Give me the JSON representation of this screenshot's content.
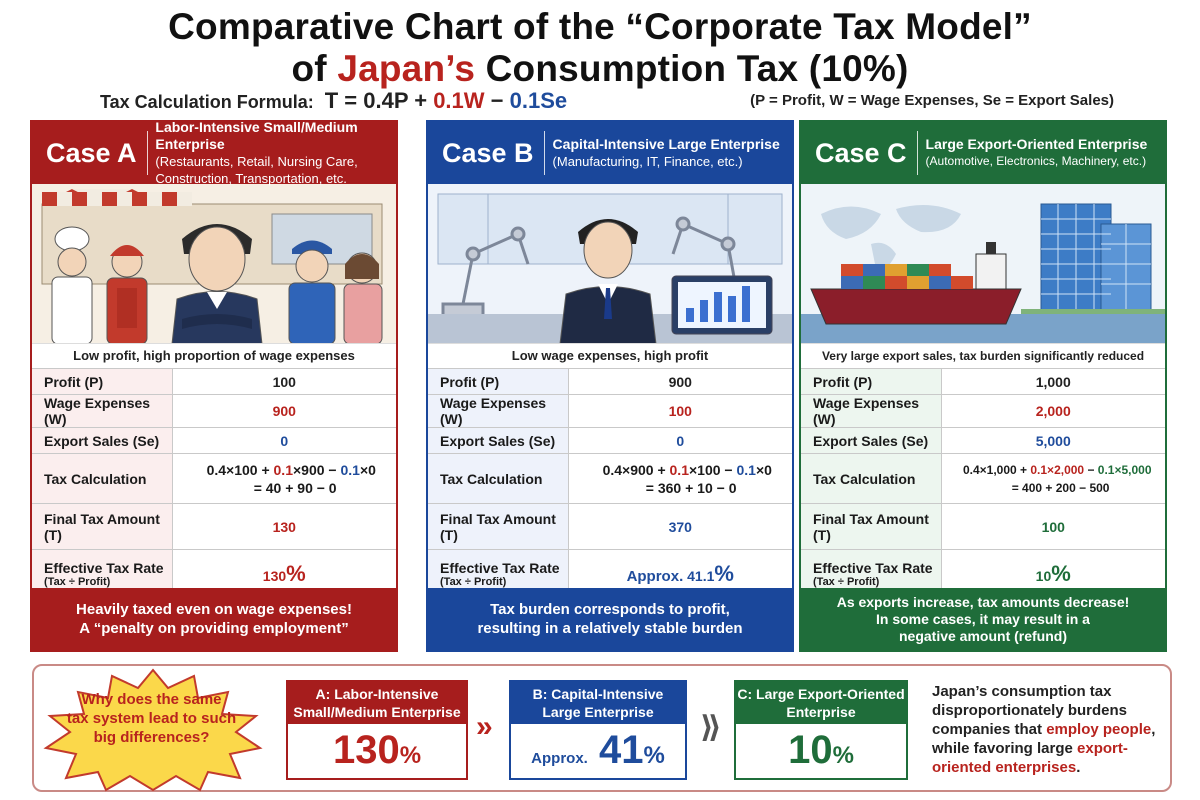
{
  "title": {
    "line1": "Comparative Chart of the “Corporate Tax Model”",
    "line2_prefix": "of",
    "line2_highlight": "Japan’s",
    "line2_suffix": "Consumption Tax (10%)"
  },
  "formula": {
    "label": "Tax Calculation Formula:",
    "part1": "T = 0.4P +",
    "part2": "0.1W",
    "part3": "−",
    "part4": "0.1Se",
    "legend": "(P = Profit, W = Wage Expenses, Se = Export Sales)"
  },
  "row_labels": {
    "profit": "Profit (P)",
    "wages": "Wage Expenses (W)",
    "exports": "Export Sales (Se)",
    "calc": "Tax Calculation",
    "final": "Final Tax Amount (T)",
    "rate": "Effective Tax Rate",
    "rate_sub": "(Tax ÷ Profit)"
  },
  "cases": {
    "a": {
      "label": "Case A",
      "title": "Labor-Intensive Small/Medium Enterprise",
      "subtitle_l1": "(Restaurants, Retail, Nursing Care,",
      "subtitle_l2": "Construction, Transportation, etc.",
      "caption": "Low profit, high proportion of wage expenses",
      "profit": "100",
      "wages": "900",
      "exports": "0",
      "calc_l1_a": "0.4×100 +",
      "calc_l1_b": "0.1",
      "calc_l1_c": "×900 −",
      "calc_l1_d": "0.1",
      "calc_l1_e": "×0",
      "calc_l2": "= 40 + 90 − 0",
      "final": "130",
      "rate": "130",
      "rate_unit": "%",
      "footer_l1": "Heavily taxed even on wage expenses!",
      "footer_l2": "A “penalty on providing employment”"
    },
    "b": {
      "label": "Case B",
      "title": "Capital-Intensive Large Enterprise",
      "subtitle_l1": "(Manufacturing, IT, Finance, etc.)",
      "caption": "Low wage expenses, high profit",
      "profit": "900",
      "wages": "100",
      "exports": "0",
      "calc_l1_a": "0.4×900 +",
      "calc_l1_b": "0.1",
      "calc_l1_c": "×100 −",
      "calc_l1_d": "0.1",
      "calc_l1_e": "×0",
      "calc_l2": "= 360 + 10 − 0",
      "final": "370",
      "rate_prefix": "Approx.",
      "rate": "41.1",
      "rate_unit": "%",
      "footer_l1": "Tax burden corresponds to profit,",
      "footer_l2": "resulting in a relatively stable burden"
    },
    "c": {
      "label": "Case C",
      "title": "Large Export-Oriented Enterprise",
      "subtitle_l1": "(Automotive, Electronics, Machinery, etc.)",
      "caption": "Very large export sales, tax burden significantly reduced",
      "profit": "1,000",
      "wages": "2,000",
      "exports": "5,000",
      "calc_l1_a": "0.4×1,000 +",
      "calc_l1_b": "0.1×2,000",
      "calc_l1_c": "−",
      "calc_l1_d": "0.1×5,000",
      "calc_l2": "= 400 + 200 − 500",
      "final": "100",
      "rate": "10",
      "rate_unit": "%",
      "footer_l1": "As exports increase, tax amounts decrease!",
      "footer_l2": "In some cases, it may result in a",
      "footer_l3": "negative amount (refund)"
    }
  },
  "summary": {
    "question_l1": "Why does the same",
    "question_l2": "tax system lead to such",
    "question_l3": "big differences?",
    "a_head_l1": "A: Labor-Intensive",
    "a_head_l2": "Small/Medium Enterprise",
    "a_value": "130",
    "b_head_l1": "B: Capital-Intensive",
    "b_head_l2": "Large Enterprise",
    "b_prefix": "Approx.",
    "b_value": "41",
    "c_head_l1": "C: Large Export-Oriented",
    "c_head_l2": "Enterprise",
    "c_value": "10",
    "unit": "%",
    "arrow": "»",
    "arrow2": "⟫",
    "conclusion_1": "Japan’s consumption tax disproportionately burdens companies that",
    "conclusion_2": "employ people",
    "conclusion_3": ", while favoring large",
    "conclusion_4": "export-oriented enterprises",
    "conclusion_5": "."
  },
  "colors": {
    "case_a": "#a61d1d",
    "case_b": "#1a479b",
    "case_c": "#1f6d3a",
    "accent_red": "#b8231e",
    "accent_blue": "#1f4c9c"
  }
}
